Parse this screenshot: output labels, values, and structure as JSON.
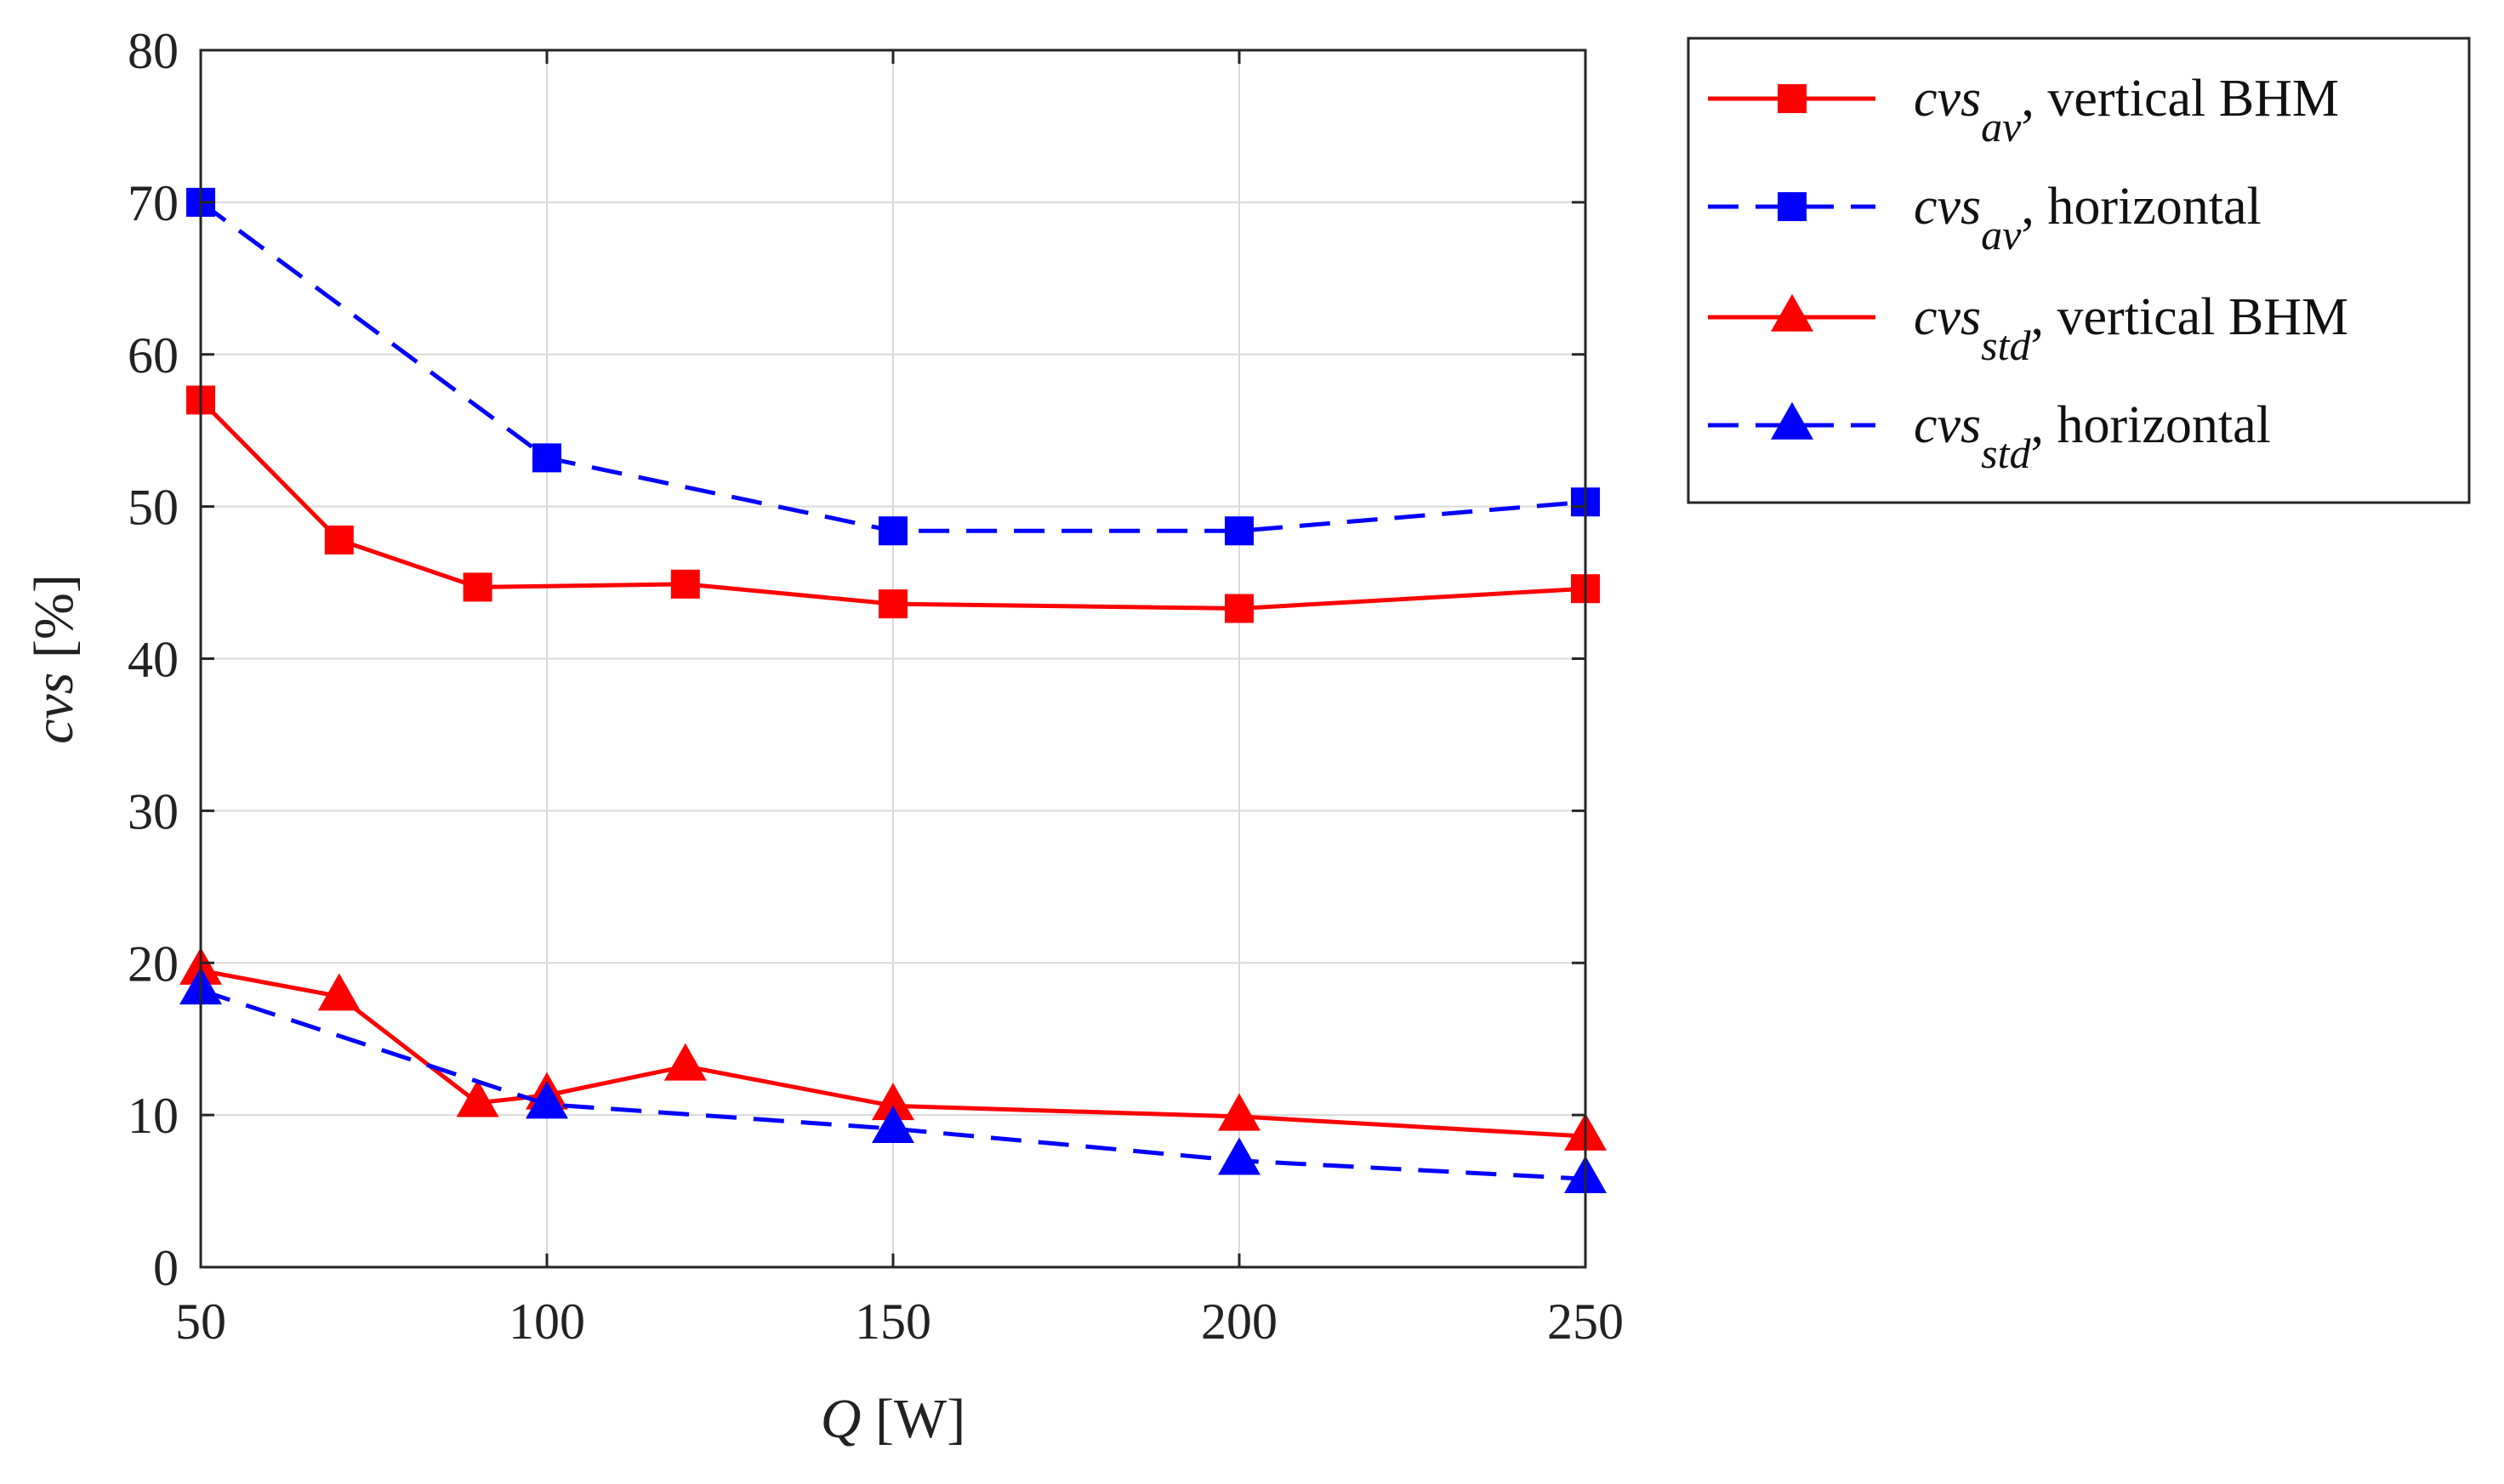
{
  "chart_data": {
    "type": "line",
    "xlabel": {
      "var": "Q",
      "unit": " [W]"
    },
    "ylabel": {
      "var": "cvs",
      "unit": " [%]"
    },
    "xlim": [
      50,
      250
    ],
    "ylim": [
      0,
      80
    ],
    "xticks": [
      50,
      100,
      150,
      200,
      250
    ],
    "yticks": [
      0,
      10,
      20,
      30,
      40,
      50,
      60,
      70,
      80
    ],
    "grid": true,
    "legend_position": "outside-top-right",
    "series": [
      {
        "name": "cvs_av, vertical BHM",
        "legend_main": "cvs",
        "legend_sub": "av",
        "legend_rest": ", vertical BHM",
        "color": "#ff0000",
        "dash": "solid",
        "marker": "square",
        "x": [
          50,
          70,
          90,
          120,
          150,
          200,
          250
        ],
        "y": [
          57.0,
          47.8,
          44.7,
          44.9,
          43.6,
          43.3,
          44.6
        ]
      },
      {
        "name": "cvs_av, horizontal",
        "legend_main": "cvs",
        "legend_sub": "av",
        "legend_rest": ", horizontal",
        "color": "#0000ff",
        "dash": "dashed",
        "marker": "square",
        "x": [
          50,
          100,
          150,
          200,
          250
        ],
        "y": [
          70.0,
          53.2,
          48.4,
          48.4,
          50.3
        ]
      },
      {
        "name": "cvs_std, vertical BHM",
        "legend_main": "cvs",
        "legend_sub": "std",
        "legend_rest": ", vertical BHM",
        "color": "#ff0000",
        "dash": "solid",
        "marker": "triangle",
        "x": [
          50,
          70,
          90,
          100,
          120,
          150,
          200,
          250
        ],
        "y": [
          19.5,
          17.8,
          10.8,
          11.3,
          13.2,
          10.6,
          9.9,
          8.6
        ]
      },
      {
        "name": "cvs_std, horizontal",
        "legend_main": "cvs",
        "legend_sub": "std",
        "legend_rest": ", horizontal",
        "color": "#0000ff",
        "dash": "dashed",
        "marker": "triangle",
        "x": [
          50,
          100,
          150,
          200,
          250
        ],
        "y": [
          18.2,
          10.7,
          9.1,
          7.0,
          5.8
        ]
      }
    ]
  }
}
